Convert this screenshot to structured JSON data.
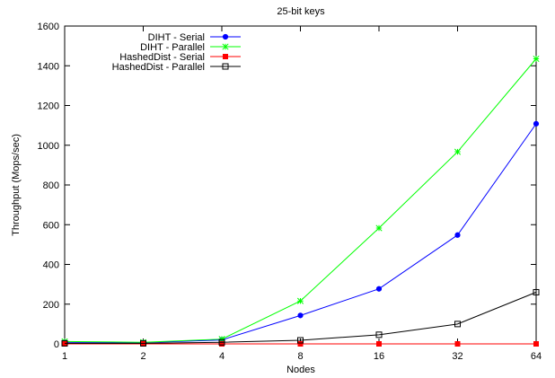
{
  "chart_data": {
    "type": "line",
    "title": "25-bit keys",
    "xlabel": "Nodes",
    "ylabel": "Throughput (Mops/sec)",
    "x_scale": "log2",
    "x": [
      1,
      2,
      4,
      8,
      16,
      32,
      64
    ],
    "x_ticks": [
      "1",
      "2",
      "4",
      "8",
      "16",
      "32",
      "64"
    ],
    "ylim": [
      0,
      1600
    ],
    "y_ticks": [
      "0",
      "200",
      "400",
      "600",
      "800",
      "1000",
      "1200",
      "1400",
      "1600"
    ],
    "grid": false,
    "legend_position": "top-left",
    "series": [
      {
        "name": "DIHT - Serial",
        "color": "#0000ff",
        "marker": "filled-circle",
        "values": [
          8,
          6,
          20,
          143,
          277,
          548,
          1108
        ]
      },
      {
        "name": "DIHT - Parallel",
        "color": "#00ff00",
        "marker": "asterisk",
        "values": [
          12,
          8,
          24,
          216,
          583,
          967,
          1435
        ]
      },
      {
        "name": "HashedDist - Serial",
        "color": "#ff0000",
        "marker": "filled-square",
        "values": [
          0,
          0,
          0,
          0,
          0,
          0,
          0
        ]
      },
      {
        "name": "HashedDist - Parallel",
        "color": "#000000",
        "marker": "open-square",
        "values": [
          3,
          3,
          8,
          18,
          46,
          100,
          260
        ]
      }
    ]
  }
}
